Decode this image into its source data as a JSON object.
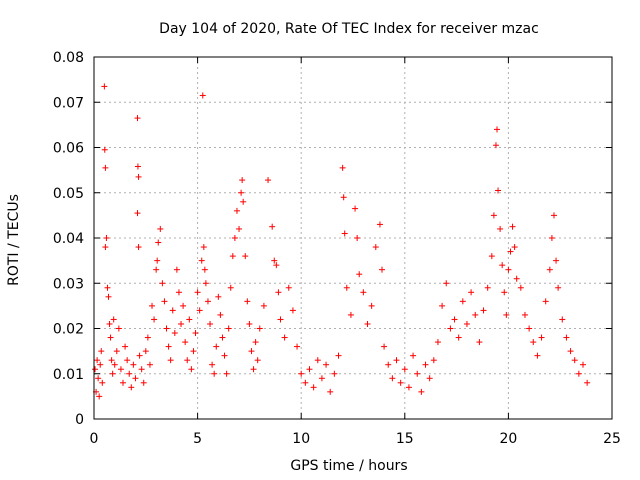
{
  "chart_data": {
    "type": "scatter",
    "title": "Day 104 of 2020, Rate Of TEC Index for receiver mzac",
    "xlabel": "GPS time / hours",
    "ylabel": "ROTI / TECUs",
    "xlim": [
      0,
      25
    ],
    "ylim": [
      0,
      0.08
    ],
    "x_ticks": [
      "0",
      "5",
      "10",
      "15",
      "20",
      "25"
    ],
    "y_ticks": [
      "0",
      "0.01",
      "0.02",
      "0.03",
      "0.04",
      "0.05",
      "0.06",
      "0.07",
      "0.08"
    ],
    "grid": true,
    "marker": "+",
    "series_color": "#ff0000",
    "series": [
      {
        "points": [
          [
            0.05,
            0.011
          ],
          [
            0.1,
            0.006
          ],
          [
            0.15,
            0.013
          ],
          [
            0.2,
            0.009
          ],
          [
            0.25,
            0.005
          ],
          [
            0.3,
            0.012
          ],
          [
            0.35,
            0.015
          ],
          [
            0.4,
            0.008
          ],
          [
            0.5,
            0.0735
          ],
          [
            0.52,
            0.0595
          ],
          [
            0.55,
            0.0555
          ],
          [
            0.55,
            0.038
          ],
          [
            0.6,
            0.04
          ],
          [
            0.65,
            0.029
          ],
          [
            0.7,
            0.027
          ],
          [
            0.75,
            0.021
          ],
          [
            0.8,
            0.018
          ],
          [
            0.85,
            0.013
          ],
          [
            0.9,
            0.01
          ],
          [
            0.95,
            0.022
          ],
          [
            1.0,
            0.012
          ],
          [
            1.1,
            0.015
          ],
          [
            1.2,
            0.02
          ],
          [
            1.3,
            0.011
          ],
          [
            1.4,
            0.008
          ],
          [
            1.5,
            0.016
          ],
          [
            1.6,
            0.013
          ],
          [
            1.7,
            0.01
          ],
          [
            1.8,
            0.007
          ],
          [
            1.9,
            0.012
          ],
          [
            2.0,
            0.009
          ],
          [
            2.1,
            0.0665
          ],
          [
            2.12,
            0.0558
          ],
          [
            2.15,
            0.0535
          ],
          [
            2.1,
            0.0455
          ],
          [
            2.15,
            0.038
          ],
          [
            2.2,
            0.014
          ],
          [
            2.3,
            0.011
          ],
          [
            2.4,
            0.008
          ],
          [
            2.5,
            0.015
          ],
          [
            2.6,
            0.018
          ],
          [
            2.7,
            0.012
          ],
          [
            2.8,
            0.025
          ],
          [
            2.9,
            0.022
          ],
          [
            3.0,
            0.033
          ],
          [
            3.05,
            0.035
          ],
          [
            3.1,
            0.039
          ],
          [
            3.2,
            0.042
          ],
          [
            3.3,
            0.03
          ],
          [
            3.4,
            0.026
          ],
          [
            3.5,
            0.02
          ],
          [
            3.6,
            0.016
          ],
          [
            3.7,
            0.013
          ],
          [
            3.8,
            0.024
          ],
          [
            3.9,
            0.019
          ],
          [
            4.0,
            0.033
          ],
          [
            4.1,
            0.028
          ],
          [
            4.2,
            0.021
          ],
          [
            4.3,
            0.025
          ],
          [
            4.4,
            0.017
          ],
          [
            4.5,
            0.013
          ],
          [
            4.6,
            0.022
          ],
          [
            4.7,
            0.011
          ],
          [
            4.8,
            0.015
          ],
          [
            4.9,
            0.019
          ],
          [
            5.0,
            0.028
          ],
          [
            5.1,
            0.024
          ],
          [
            5.2,
            0.035
          ],
          [
            5.25,
            0.0715
          ],
          [
            5.3,
            0.038
          ],
          [
            5.35,
            0.033
          ],
          [
            5.4,
            0.03
          ],
          [
            5.5,
            0.026
          ],
          [
            5.6,
            0.021
          ],
          [
            5.7,
            0.012
          ],
          [
            5.8,
            0.01
          ],
          [
            5.9,
            0.016
          ],
          [
            6.0,
            0.027
          ],
          [
            6.1,
            0.023
          ],
          [
            6.2,
            0.018
          ],
          [
            6.3,
            0.014
          ],
          [
            6.4,
            0.01
          ],
          [
            6.5,
            0.02
          ],
          [
            6.6,
            0.029
          ],
          [
            6.7,
            0.036
          ],
          [
            6.8,
            0.04
          ],
          [
            6.9,
            0.046
          ],
          [
            7.0,
            0.042
          ],
          [
            7.1,
            0.05
          ],
          [
            7.15,
            0.0528
          ],
          [
            7.2,
            0.048
          ],
          [
            7.3,
            0.036
          ],
          [
            7.4,
            0.026
          ],
          [
            7.5,
            0.021
          ],
          [
            7.6,
            0.015
          ],
          [
            7.7,
            0.011
          ],
          [
            7.8,
            0.017
          ],
          [
            7.9,
            0.013
          ],
          [
            8.0,
            0.02
          ],
          [
            8.2,
            0.025
          ],
          [
            8.4,
            0.0528
          ],
          [
            8.6,
            0.0425
          ],
          [
            8.7,
            0.035
          ],
          [
            8.8,
            0.034
          ],
          [
            8.9,
            0.028
          ],
          [
            9.0,
            0.022
          ],
          [
            9.2,
            0.018
          ],
          [
            9.4,
            0.029
          ],
          [
            9.6,
            0.024
          ],
          [
            9.8,
            0.016
          ],
          [
            10.0,
            0.01
          ],
          [
            10.2,
            0.008
          ],
          [
            10.4,
            0.011
          ],
          [
            10.6,
            0.007
          ],
          [
            10.8,
            0.013
          ],
          [
            11.0,
            0.009
          ],
          [
            11.2,
            0.012
          ],
          [
            11.4,
            0.006
          ],
          [
            11.6,
            0.01
          ],
          [
            11.8,
            0.014
          ],
          [
            12.0,
            0.0555
          ],
          [
            12.05,
            0.049
          ],
          [
            12.1,
            0.041
          ],
          [
            12.2,
            0.029
          ],
          [
            12.4,
            0.023
          ],
          [
            12.6,
            0.0465
          ],
          [
            12.7,
            0.04
          ],
          [
            12.8,
            0.032
          ],
          [
            13.0,
            0.028
          ],
          [
            13.2,
            0.021
          ],
          [
            13.4,
            0.025
          ],
          [
            13.6,
            0.038
          ],
          [
            13.8,
            0.043
          ],
          [
            13.9,
            0.033
          ],
          [
            14.0,
            0.016
          ],
          [
            14.2,
            0.012
          ],
          [
            14.4,
            0.009
          ],
          [
            14.6,
            0.013
          ],
          [
            14.8,
            0.008
          ],
          [
            15.0,
            0.011
          ],
          [
            15.2,
            0.007
          ],
          [
            15.4,
            0.014
          ],
          [
            15.6,
            0.01
          ],
          [
            15.8,
            0.006
          ],
          [
            16.0,
            0.012
          ],
          [
            16.2,
            0.009
          ],
          [
            16.4,
            0.013
          ],
          [
            16.6,
            0.017
          ],
          [
            16.8,
            0.025
          ],
          [
            17.0,
            0.03
          ],
          [
            17.2,
            0.02
          ],
          [
            17.4,
            0.022
          ],
          [
            17.6,
            0.018
          ],
          [
            17.8,
            0.026
          ],
          [
            18.0,
            0.021
          ],
          [
            18.2,
            0.028
          ],
          [
            18.4,
            0.023
          ],
          [
            18.6,
            0.017
          ],
          [
            18.8,
            0.024
          ],
          [
            19.0,
            0.029
          ],
          [
            19.2,
            0.036
          ],
          [
            19.3,
            0.045
          ],
          [
            19.4,
            0.0605
          ],
          [
            19.45,
            0.064
          ],
          [
            19.5,
            0.0505
          ],
          [
            19.6,
            0.042
          ],
          [
            19.7,
            0.034
          ],
          [
            19.8,
            0.028
          ],
          [
            19.9,
            0.023
          ],
          [
            20.0,
            0.033
          ],
          [
            20.1,
            0.037
          ],
          [
            20.2,
            0.0425
          ],
          [
            20.3,
            0.038
          ],
          [
            20.4,
            0.031
          ],
          [
            20.6,
            0.029
          ],
          [
            20.8,
            0.023
          ],
          [
            21.0,
            0.02
          ],
          [
            21.2,
            0.017
          ],
          [
            21.4,
            0.014
          ],
          [
            21.6,
            0.018
          ],
          [
            21.8,
            0.026
          ],
          [
            22.0,
            0.033
          ],
          [
            22.1,
            0.04
          ],
          [
            22.2,
            0.045
          ],
          [
            22.3,
            0.035
          ],
          [
            22.4,
            0.029
          ],
          [
            22.6,
            0.022
          ],
          [
            22.8,
            0.018
          ],
          [
            23.0,
            0.015
          ],
          [
            23.2,
            0.013
          ],
          [
            23.4,
            0.01
          ],
          [
            23.6,
            0.012
          ],
          [
            23.8,
            0.008
          ]
        ]
      }
    ]
  }
}
